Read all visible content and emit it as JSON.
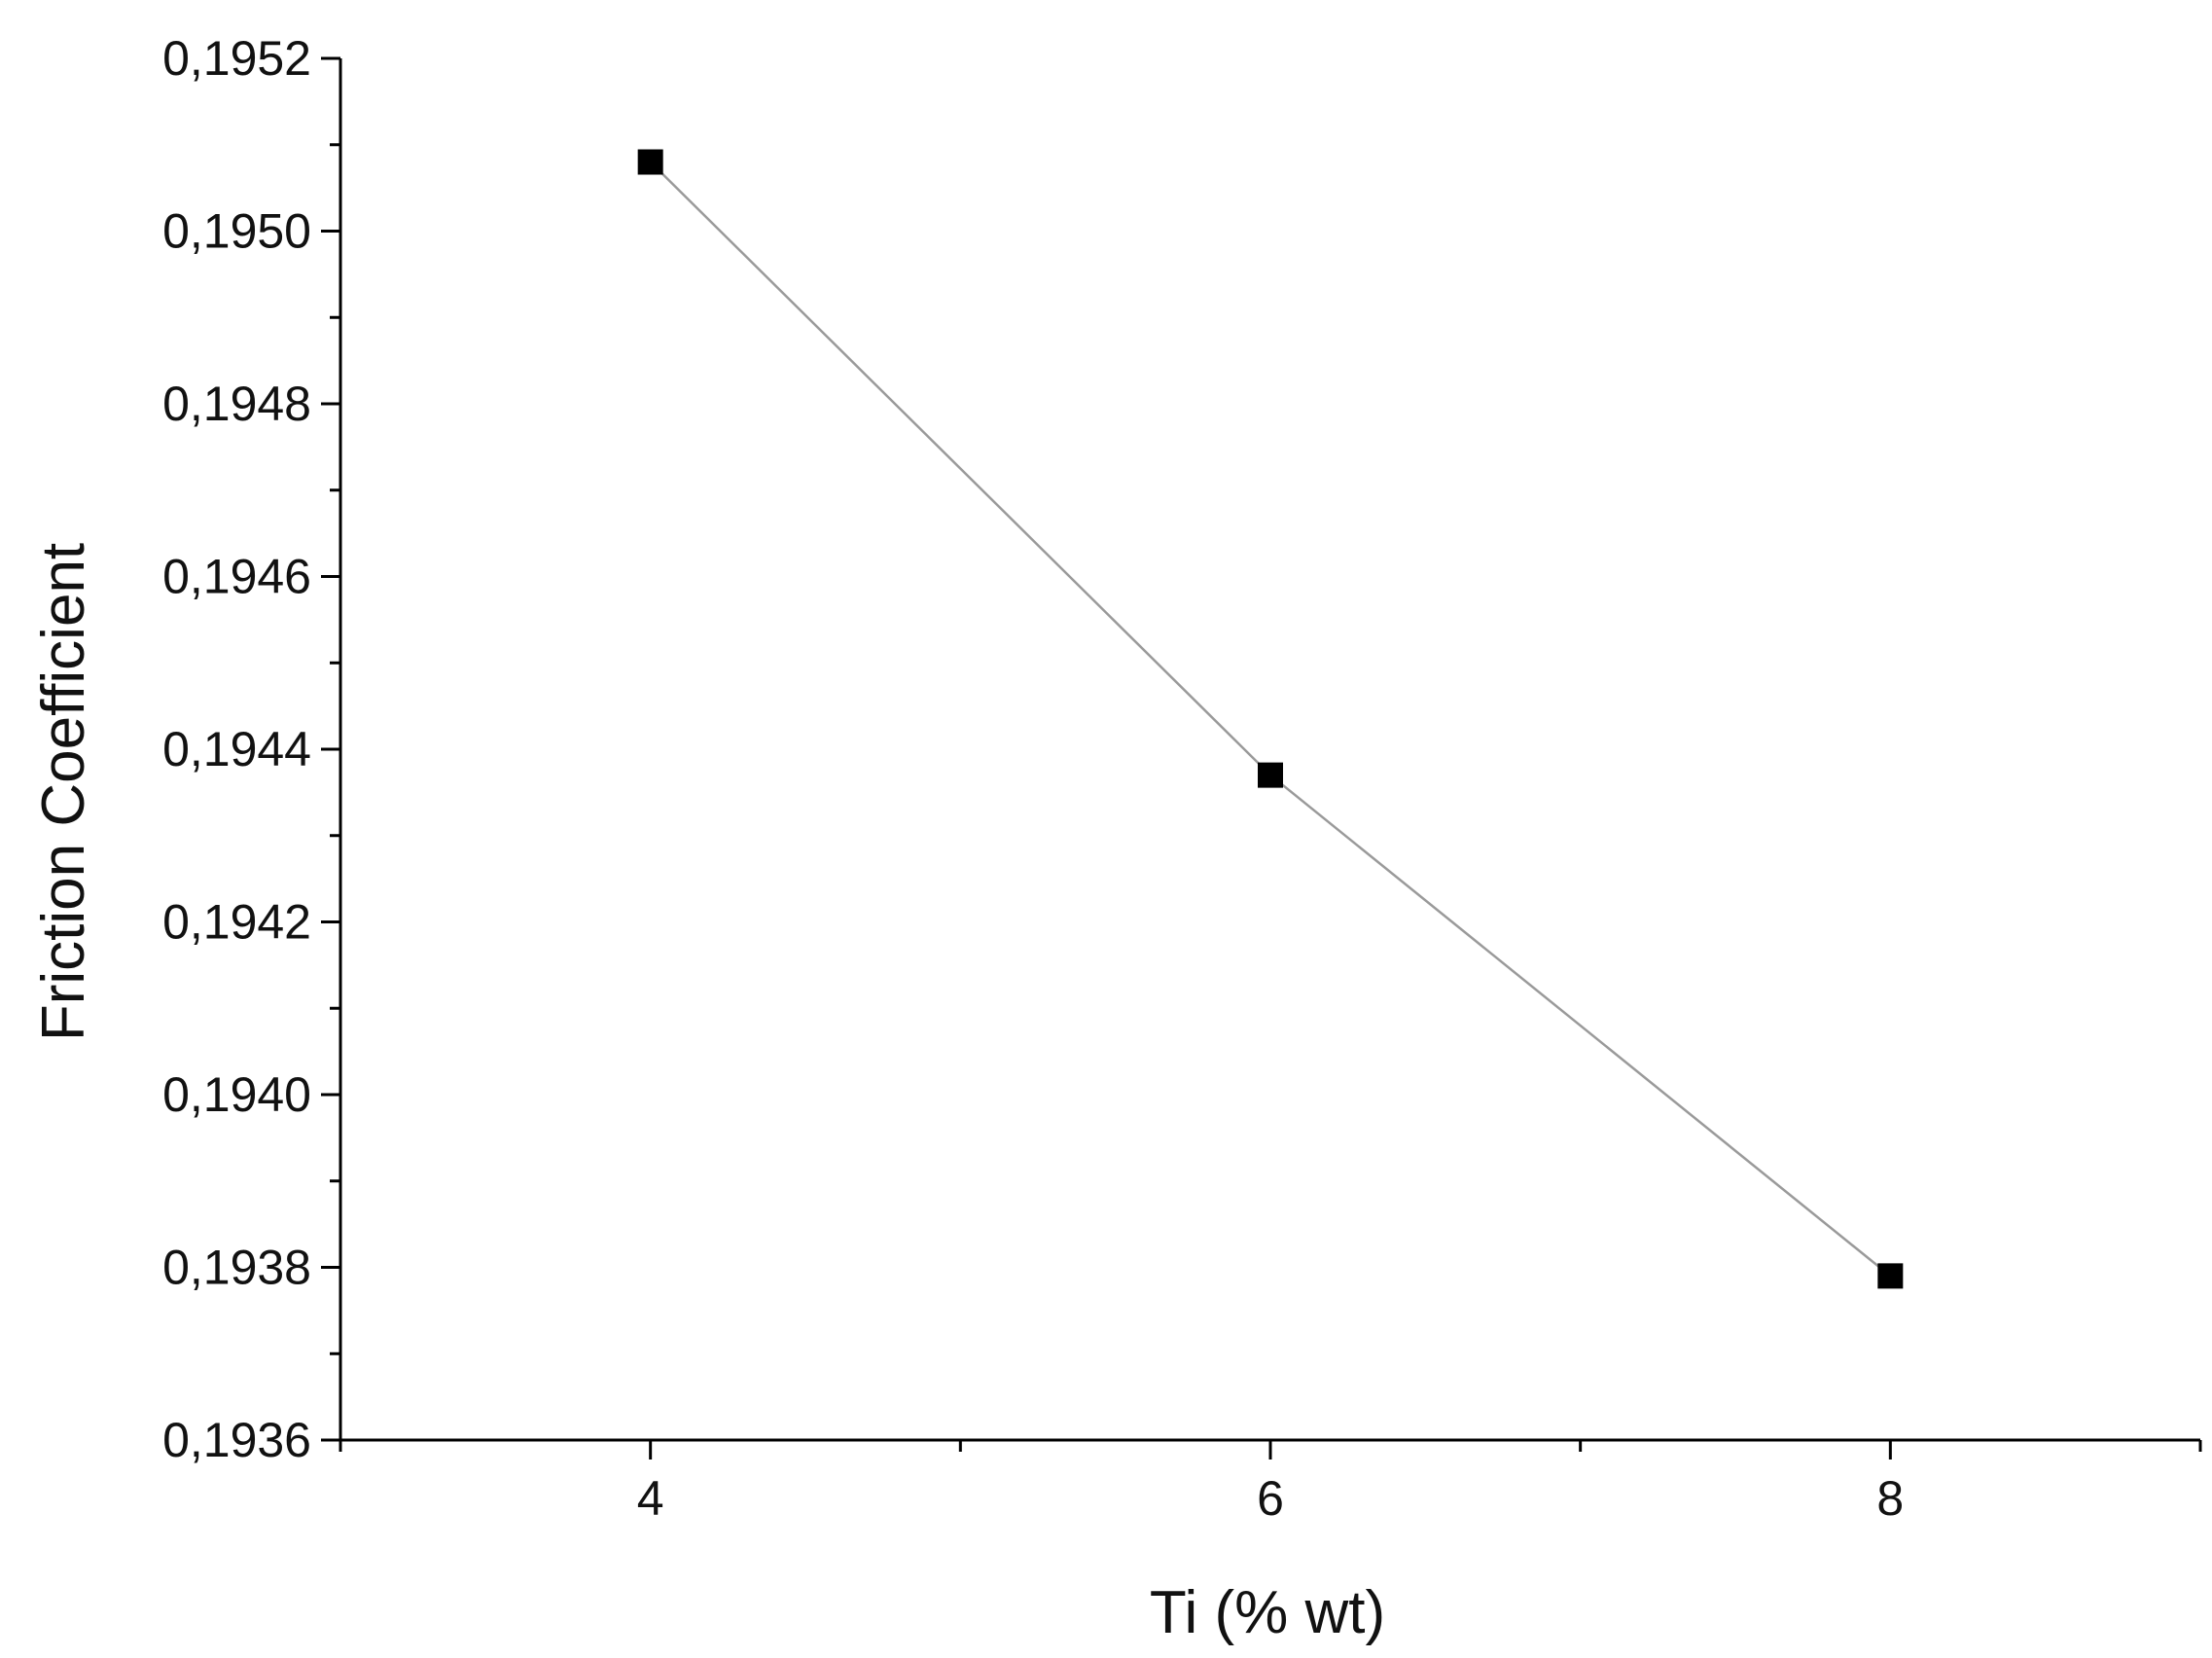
{
  "chart_data": {
    "type": "line",
    "title": "",
    "xlabel": "Ti (% wt)",
    "ylabel": "Friction Coefficient",
    "xlim": [
      3,
      9
    ],
    "ylim": [
      0.1936,
      0.1952
    ],
    "x_ticks": [
      4,
      6,
      8
    ],
    "x_tick_labels": [
      "4",
      "6",
      "8"
    ],
    "x_minor_ticks": [
      3,
      5,
      7,
      9
    ],
    "y_ticks": [
      0.1936,
      0.1938,
      0.194,
      0.1942,
      0.1944,
      0.1946,
      0.1948,
      0.195,
      0.1952
    ],
    "y_tick_labels": [
      "0,1936",
      "0,1938",
      "0,1940",
      "0,1942",
      "0,1944",
      "0,1946",
      "0,1948",
      "0,1950",
      "0,1952"
    ],
    "grid": false,
    "legend": "none",
    "series": [
      {
        "x": [
          4,
          6,
          8
        ],
        "y": [
          0.19508,
          0.19437,
          0.19379
        ],
        "marker": "square",
        "marker_color": "#000000",
        "line_color": "#9a9a9a"
      }
    ]
  }
}
